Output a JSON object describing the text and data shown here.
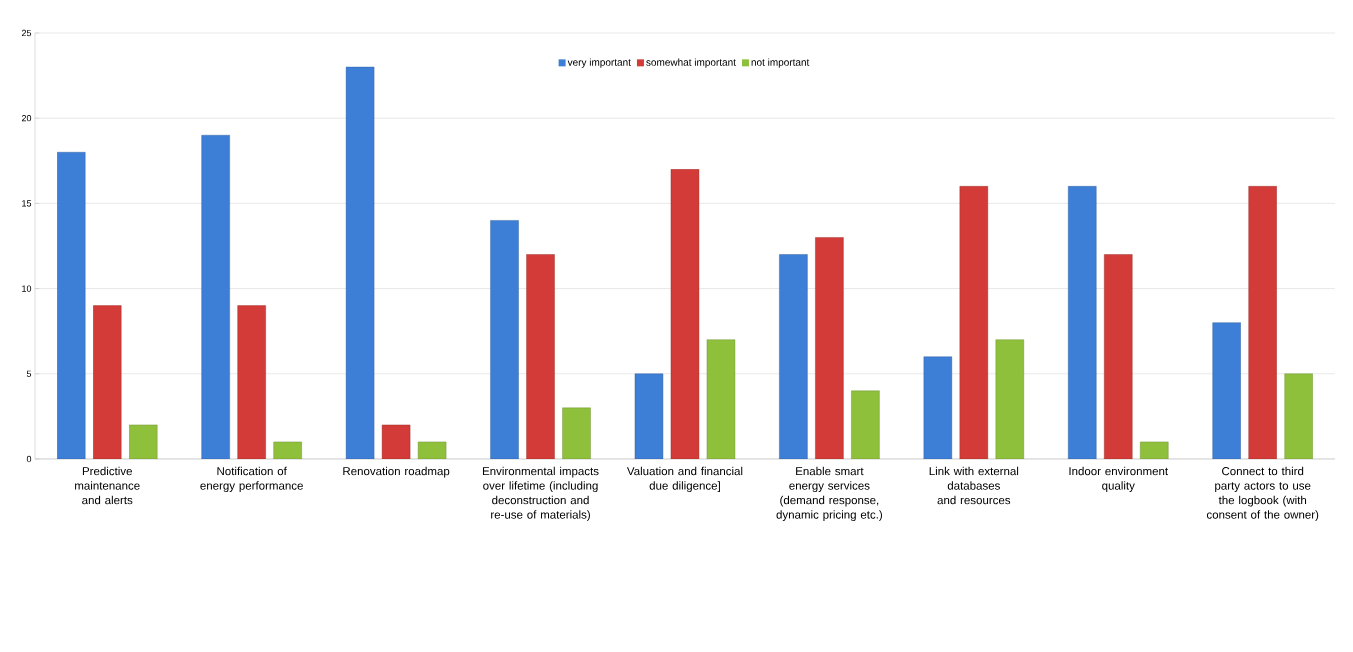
{
  "chart_data": {
    "type": "bar",
    "categories": [
      "Predictive maintenance and alerts",
      "Notification of energy performance",
      "Renovation roadmap",
      "Environmental impacts over lifetime (including deconstruction and re-use of materials)",
      "Valuation and financial due diligence]",
      "Enable smart energy services (demand response, dynamic pricing etc.)",
      "Link with external databases and resources",
      "Indoor environment quality",
      "Connect to third party actors to use the logbook (with consent of the owner)"
    ],
    "series": [
      {
        "name": "very important",
        "color": "#3d7fd6",
        "values": [
          18,
          19,
          23,
          14,
          5,
          12,
          6,
          16,
          8
        ]
      },
      {
        "name": "somewhat important",
        "color": "#d23b37",
        "values": [
          9,
          9,
          2,
          12,
          17,
          13,
          16,
          12,
          16
        ]
      },
      {
        "name": "not important",
        "color": "#8fc03c",
        "values": [
          2,
          1,
          1,
          3,
          7,
          4,
          7,
          1,
          5
        ]
      }
    ],
    "ylim": [
      0,
      25
    ],
    "yticks": [
      0,
      5,
      10,
      15,
      20,
      25
    ],
    "grid": "y",
    "legend": "top"
  }
}
